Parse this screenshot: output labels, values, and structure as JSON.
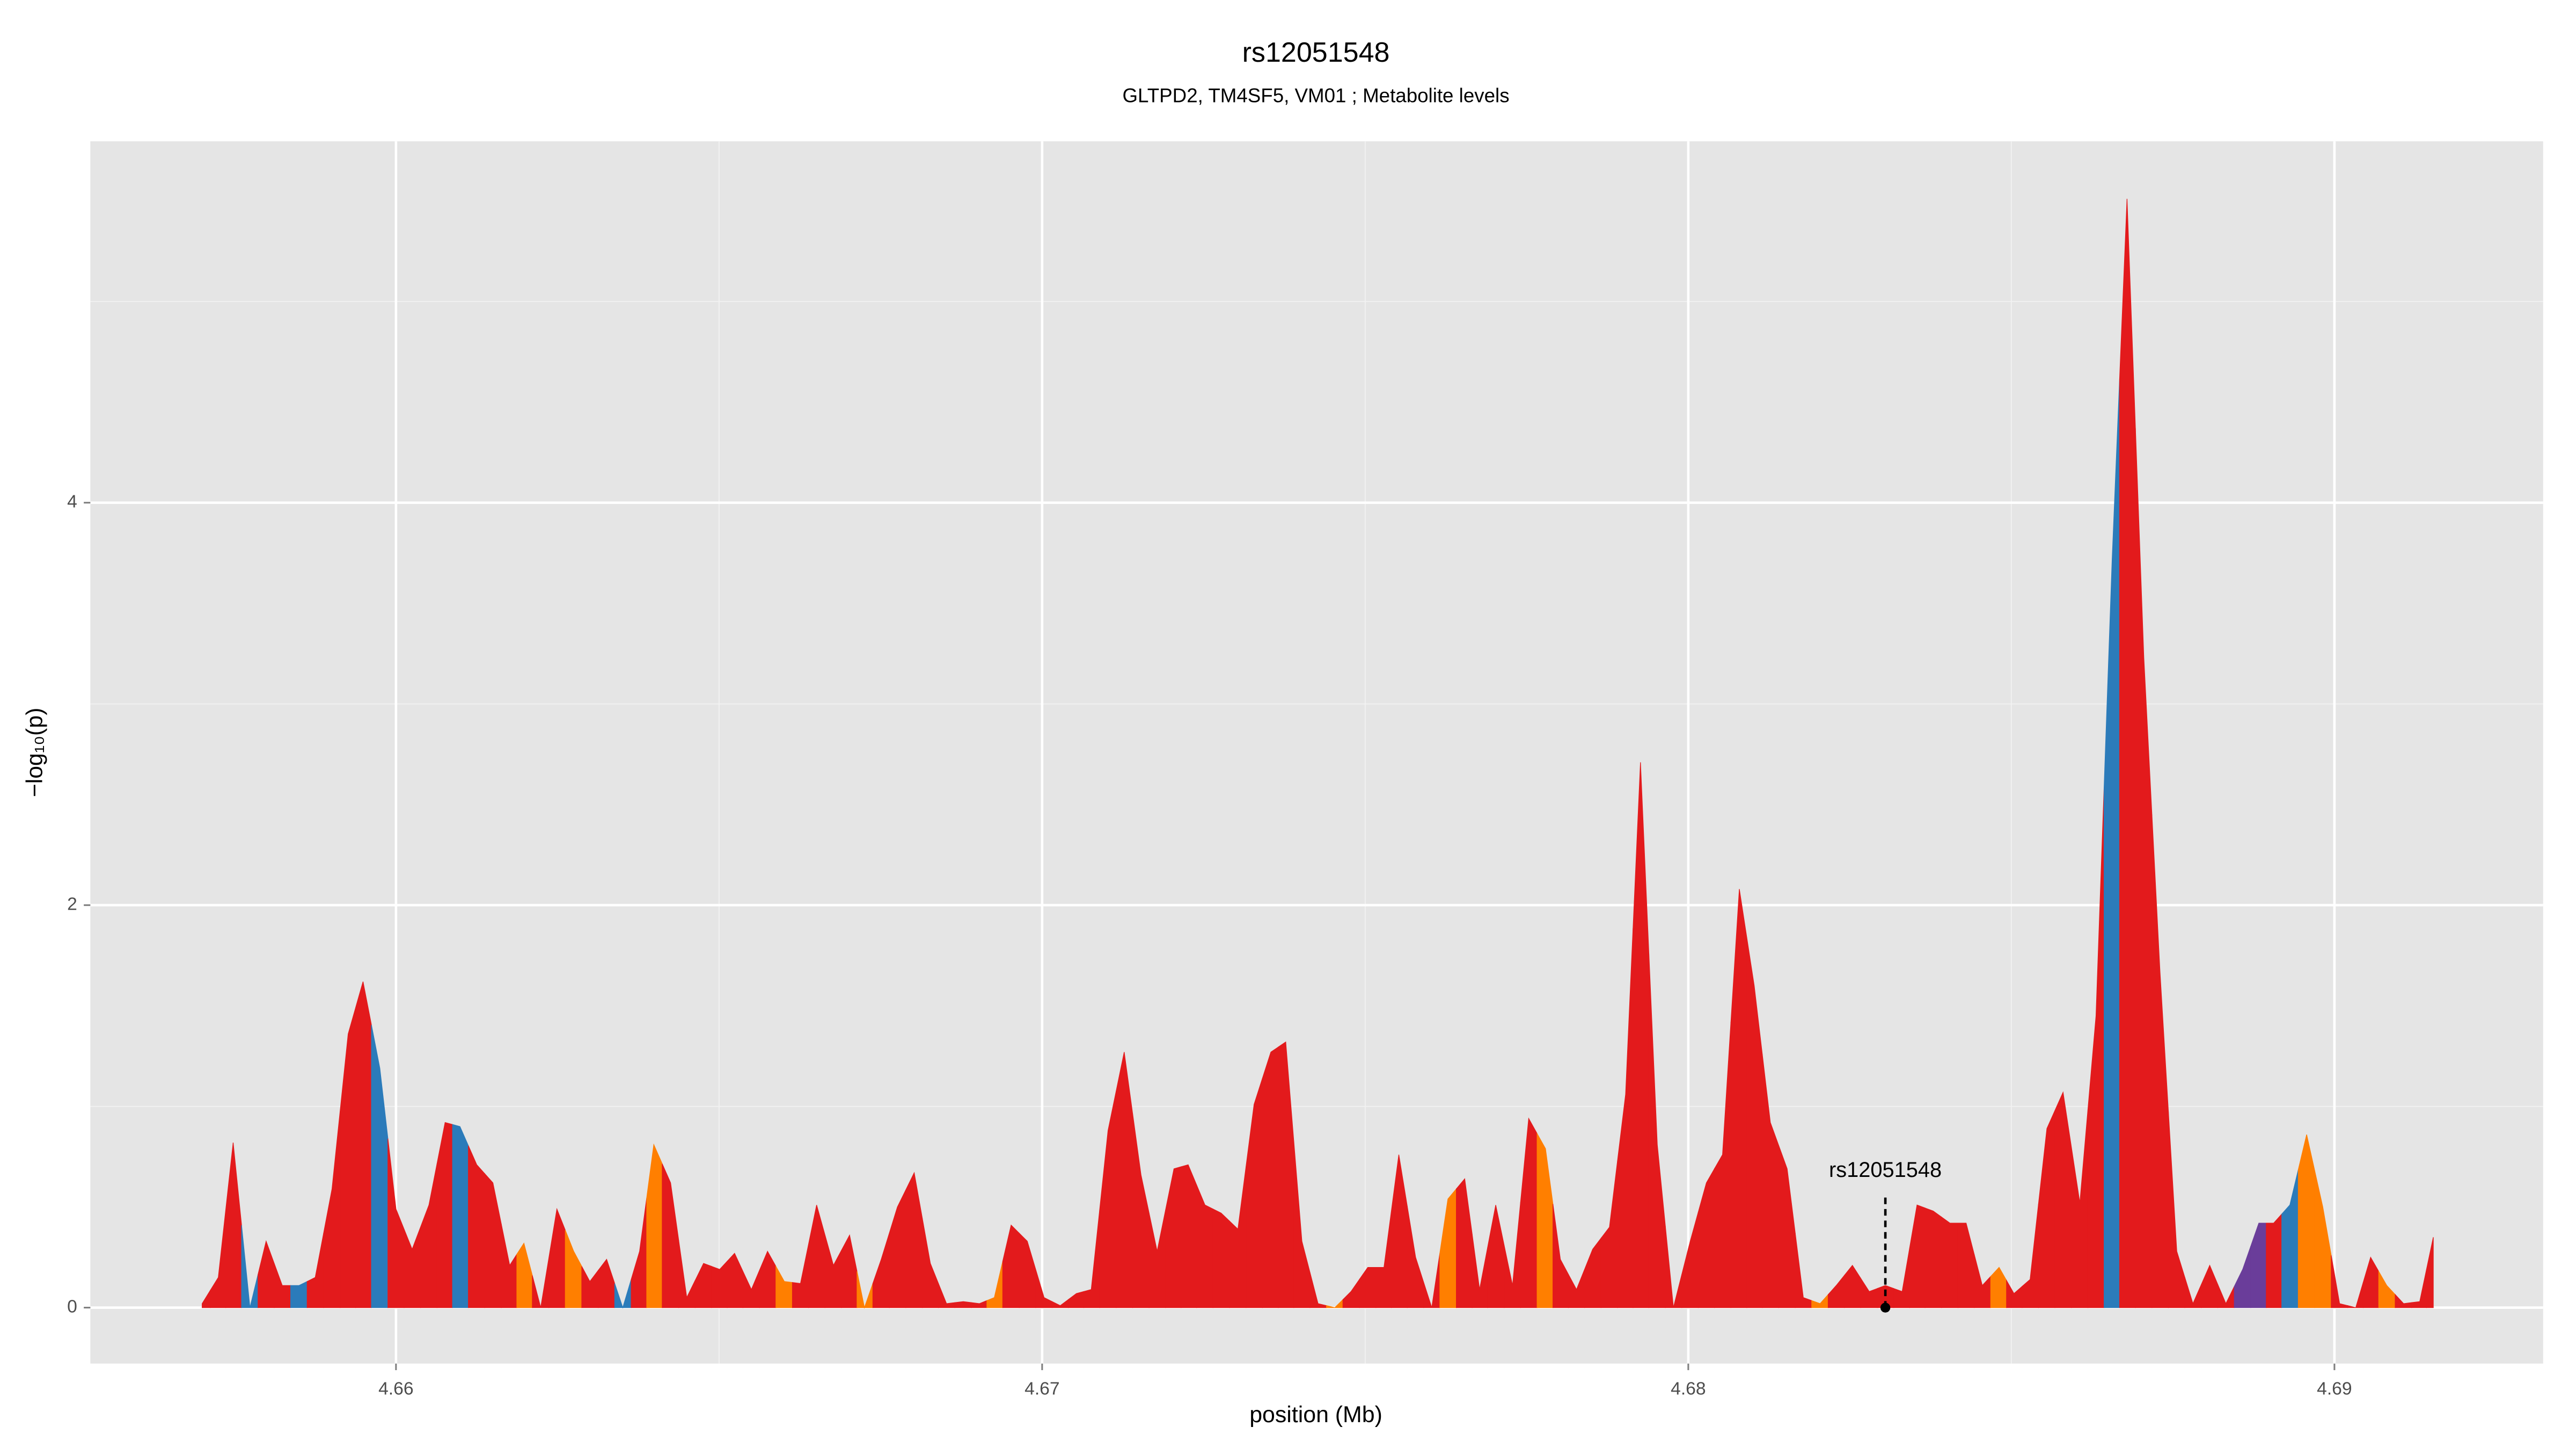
{
  "chart_data": {
    "type": "area",
    "title": "rs12051548",
    "subtitle": "GLTPD2, TM4SF5, VM01 ; Metabolite levels",
    "x_label": "position (Mb)",
    "y_label": "−log₁₀(p)",
    "x": [
      4.657,
      4.65725,
      4.65748,
      4.65774,
      4.65799,
      4.65824,
      4.6585,
      4.65875,
      4.65901,
      4.65926,
      4.65949,
      4.65975,
      4.66,
      4.66025,
      4.66051,
      4.66076,
      4.66099,
      4.66125,
      4.6615,
      4.66176,
      4.66198,
      4.66224,
      4.66249,
      4.66275,
      4.663,
      4.66326,
      4.66351,
      4.66377,
      4.66399,
      4.66425,
      4.6645,
      4.66476,
      4.66501,
      4.66524,
      4.6655,
      4.66575,
      4.66601,
      4.66626,
      4.66651,
      4.66677,
      4.66702,
      4.66725,
      4.66751,
      4.66776,
      4.66802,
      4.66827,
      4.66852,
      4.66878,
      4.66903,
      4.66926,
      4.66952,
      4.66977,
      4.67003,
      4.67028,
      4.67053,
      4.67076,
      4.67102,
      4.67127,
      4.67153,
      4.67178,
      4.67204,
      4.67226,
      4.67252,
      4.67277,
      4.67303,
      4.67328,
      4.67354,
      4.67377,
      4.67402,
      4.67427,
      4.67453,
      4.67478,
      4.67504,
      4.67529,
      4.67552,
      4.67578,
      4.67603,
      4.67628,
      4.67654,
      4.67677,
      4.67702,
      4.67728,
      4.67753,
      4.67779,
      4.67802,
      4.67827,
      4.67852,
      4.67878,
      4.67903,
      4.67926,
      4.67952,
      4.67977,
      4.68003,
      4.68028,
      4.68053,
      4.68079,
      4.68102,
      4.68127,
      4.68153,
      4.68178,
      4.68204,
      4.68229,
      4.68254,
      4.6828,
      4.68305,
      4.68331,
      4.68354,
      4.68379,
      4.68405,
      4.6843,
      4.68455,
      4.68481,
      4.68504,
      4.68529,
      4.68555,
      4.6858,
      4.68606,
      4.68631,
      4.68656,
      4.68679,
      4.68705,
      4.6873,
      4.68756,
      4.68781,
      4.68807,
      4.68832,
      4.68858,
      4.68883,
      4.68906,
      4.68931,
      4.68957,
      4.68982,
      4.69008,
      4.69033,
      4.69056,
      4.69081,
      4.69107,
      4.69132,
      4.69153
    ],
    "values": [
      0.02,
      0.15,
      0.82,
      0,
      0.33,
      0.11,
      0.11,
      0.15,
      0.59,
      1.36,
      1.62,
      1.19,
      0.49,
      0.29,
      0.51,
      0.92,
      0.9,
      0.71,
      0.62,
      0.21,
      0.32,
      0,
      0.49,
      0.28,
      0.13,
      0.24,
      0,
      0.28,
      0.81,
      0.62,
      0.05,
      0.22,
      0.19,
      0.27,
      0.09,
      0.28,
      0.13,
      0.12,
      0.51,
      0.21,
      0.36,
      0,
      0.24,
      0.5,
      0.67,
      0.22,
      0.02,
      0.03,
      0.02,
      0.05,
      0.41,
      0.33,
      0.05,
      0.01,
      0.07,
      0.09,
      0.88,
      1.27,
      0.66,
      0.28,
      0.69,
      0.71,
      0.51,
      0.47,
      0.39,
      1.01,
      1.27,
      1.32,
      0.33,
      0.02,
      0,
      0.08,
      0.2,
      0.2,
      0.76,
      0.25,
      0,
      0.54,
      0.64,
      0.09,
      0.51,
      0.11,
      0.94,
      0.79,
      0.24,
      0.09,
      0.29,
      0.4,
      1.06,
      2.71,
      0.81,
      0,
      0.33,
      0.62,
      0.76,
      2.08,
      1.6,
      0.92,
      0.69,
      0.05,
      0.02,
      0.11,
      0.21,
      0.08,
      0.11,
      0.08,
      0.51,
      0.48,
      0.42,
      0.42,
      0.11,
      0.2,
      0.07,
      0.14,
      0.89,
      1.07,
      0.52,
      1.45,
      3.72,
      5.51,
      3.23,
      1.67,
      0.28,
      0.02,
      0.21,
      0.02,
      0.19,
      0.42,
      0.42,
      0.51,
      0.86,
      0.5,
      0.02,
      0,
      0.25,
      0.11,
      0.02,
      0.03,
      0.35
    ],
    "colors": [
      "#e31a1c",
      "#e31a1c",
      "#e31a1c",
      "#2b7bba",
      "#e31a1c",
      "#e31a1c",
      "#2b7bba",
      "#e31a1c",
      "#e31a1c",
      "#e31a1c",
      "#e31a1c",
      "#2b7bba",
      "#e31a1c",
      "#e31a1c",
      "#e31a1c",
      "#e31a1c",
      "#2b7bba",
      "#e31a1c",
      "#e31a1c",
      "#e31a1c",
      "#ff7f00",
      "#e31a1c",
      "#e31a1c",
      "#ff7f00",
      "#e31a1c",
      "#e31a1c",
      "#2b7bba",
      "#e31a1c",
      "#ff7f00",
      "#e31a1c",
      "#e31a1c",
      "#e31a1c",
      "#e31a1c",
      "#e31a1c",
      "#e31a1c",
      "#e31a1c",
      "#ff7f00",
      "#e31a1c",
      "#e31a1c",
      "#e31a1c",
      "#e31a1c",
      "#ff7f00",
      "#e31a1c",
      "#e31a1c",
      "#e31a1c",
      "#e31a1c",
      "#e31a1c",
      "#e31a1c",
      "#e31a1c",
      "#ff7f00",
      "#e31a1c",
      "#e31a1c",
      "#e31a1c",
      "#e31a1c",
      "#e31a1c",
      "#e31a1c",
      "#e31a1c",
      "#e31a1c",
      "#e31a1c",
      "#e31a1c",
      "#e31a1c",
      "#e31a1c",
      "#e31a1c",
      "#e31a1c",
      "#e31a1c",
      "#e31a1c",
      "#e31a1c",
      "#e31a1c",
      "#e31a1c",
      "#e31a1c",
      "#ff7f00",
      "#e31a1c",
      "#e31a1c",
      "#e31a1c",
      "#e31a1c",
      "#e31a1c",
      "#e31a1c",
      "#ff7f00",
      "#e31a1c",
      "#e31a1c",
      "#e31a1c",
      "#e31a1c",
      "#e31a1c",
      "#ff7f00",
      "#e31a1c",
      "#e31a1c",
      "#e31a1c",
      "#e31a1c",
      "#e31a1c",
      "#e31a1c",
      "#e31a1c",
      "#e31a1c",
      "#e31a1c",
      "#e31a1c",
      "#e31a1c",
      "#e31a1c",
      "#e31a1c",
      "#e31a1c",
      "#e31a1c",
      "#e31a1c",
      "#ff7f00",
      "#e31a1c",
      "#e31a1c",
      "#e31a1c",
      "#e31a1c",
      "#e31a1c",
      "#e31a1c",
      "#e31a1c",
      "#e31a1c",
      "#e31a1c",
      "#e31a1c",
      "#ff7f00",
      "#e31a1c",
      "#e31a1c",
      "#e31a1c",
      "#e31a1c",
      "#e31a1c",
      "#e31a1c",
      "#2b7bba",
      "#e31a1c",
      "#e31a1c",
      "#e31a1c",
      "#e31a1c",
      "#e31a1c",
      "#e31a1c",
      "#e31a1c",
      "#6a3d9a",
      "#6a3d9a",
      "#e31a1c",
      "#2b7bba",
      "#ff7f00",
      "#ff7f00",
      "#e31a1c",
      "#e31a1c",
      "#e31a1c",
      "#ff7f00",
      "#e31a1c",
      "#e31a1c",
      "#e31a1c"
    ],
    "annotation": {
      "text": "rs12051548",
      "x": 4.68305,
      "y": 0
    },
    "xlim": [
      4.65527,
      4.69323
    ],
    "ylim": [
      -0.278,
      5.796
    ],
    "xticks": [
      4.66,
      4.67,
      4.68,
      4.69
    ],
    "yticks": [
      0,
      2,
      4
    ],
    "x_minor_ticks": [
      4.665,
      4.675,
      4.685
    ],
    "y_minor_ticks": [
      1,
      3,
      5
    ],
    "grid": true
  }
}
